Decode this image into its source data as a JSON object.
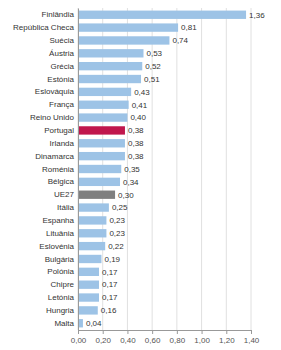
{
  "chart_data": {
    "type": "bar",
    "orientation": "horizontal",
    "categories": [
      "Malta",
      "Hungria",
      "Letónia",
      "Chipre",
      "Polónia",
      "Bulgária",
      "Eslovénia",
      "Lituânia",
      "Espanha",
      "Itália",
      "UE27",
      "Bélgica",
      "Roménia",
      "Dinamarca",
      "Irlanda",
      "Portugal",
      "Reino Unido",
      "França",
      "Eslováquia",
      "Estónia",
      "Grécia",
      "Áustria",
      "Suécia",
      "República Checa",
      "Finlândia"
    ],
    "values": [
      0.04,
      0.16,
      0.17,
      0.17,
      0.17,
      0.19,
      0.22,
      0.23,
      0.23,
      0.25,
      0.3,
      0.34,
      0.35,
      0.38,
      0.38,
      0.38,
      0.4,
      0.41,
      0.43,
      0.51,
      0.52,
      0.53,
      0.74,
      0.81,
      1.36
    ],
    "value_labels": [
      "0,04",
      "0,16",
      "0,17",
      "0,17",
      "0,17",
      "0,19",
      "0,22",
      "0,23",
      "0,23",
      "0,25",
      "0,30",
      "0,34",
      "0,35",
      "0,38",
      "0,38",
      "0,38",
      "0,40",
      "0,41",
      "0,43",
      "0,51",
      "0,52",
      "0,53",
      "0,74",
      "0,81",
      "1,36"
    ],
    "data_labels": true,
    "colors": [
      "#9dc3e6",
      "#9dc3e6",
      "#9dc3e6",
      "#9dc3e6",
      "#9dc3e6",
      "#9dc3e6",
      "#9dc3e6",
      "#9dc3e6",
      "#9dc3e6",
      "#9dc3e6",
      "#7f7f7f",
      "#9dc3e6",
      "#9dc3e6",
      "#9dc3e6",
      "#9dc3e6",
      "#c0174d",
      "#9dc3e6",
      "#9dc3e6",
      "#9dc3e6",
      "#9dc3e6",
      "#9dc3e6",
      "#9dc3e6",
      "#9dc3e6",
      "#9dc3e6",
      "#9dc3e6"
    ],
    "xlim": [
      0,
      1.4
    ],
    "xticks": [
      {
        "value": 0.0,
        "label": "0,00"
      },
      {
        "value": 0.2,
        "label": "0,20"
      },
      {
        "value": 0.4,
        "label": "0,40"
      },
      {
        "value": 0.6,
        "label": "0,60"
      },
      {
        "value": 0.8,
        "label": "0,80"
      },
      {
        "value": 1.0,
        "label": "1,00"
      },
      {
        "value": 1.2,
        "label": "1,20"
      },
      {
        "value": 1.4,
        "label": "1,40"
      }
    ],
    "grid": true
  }
}
